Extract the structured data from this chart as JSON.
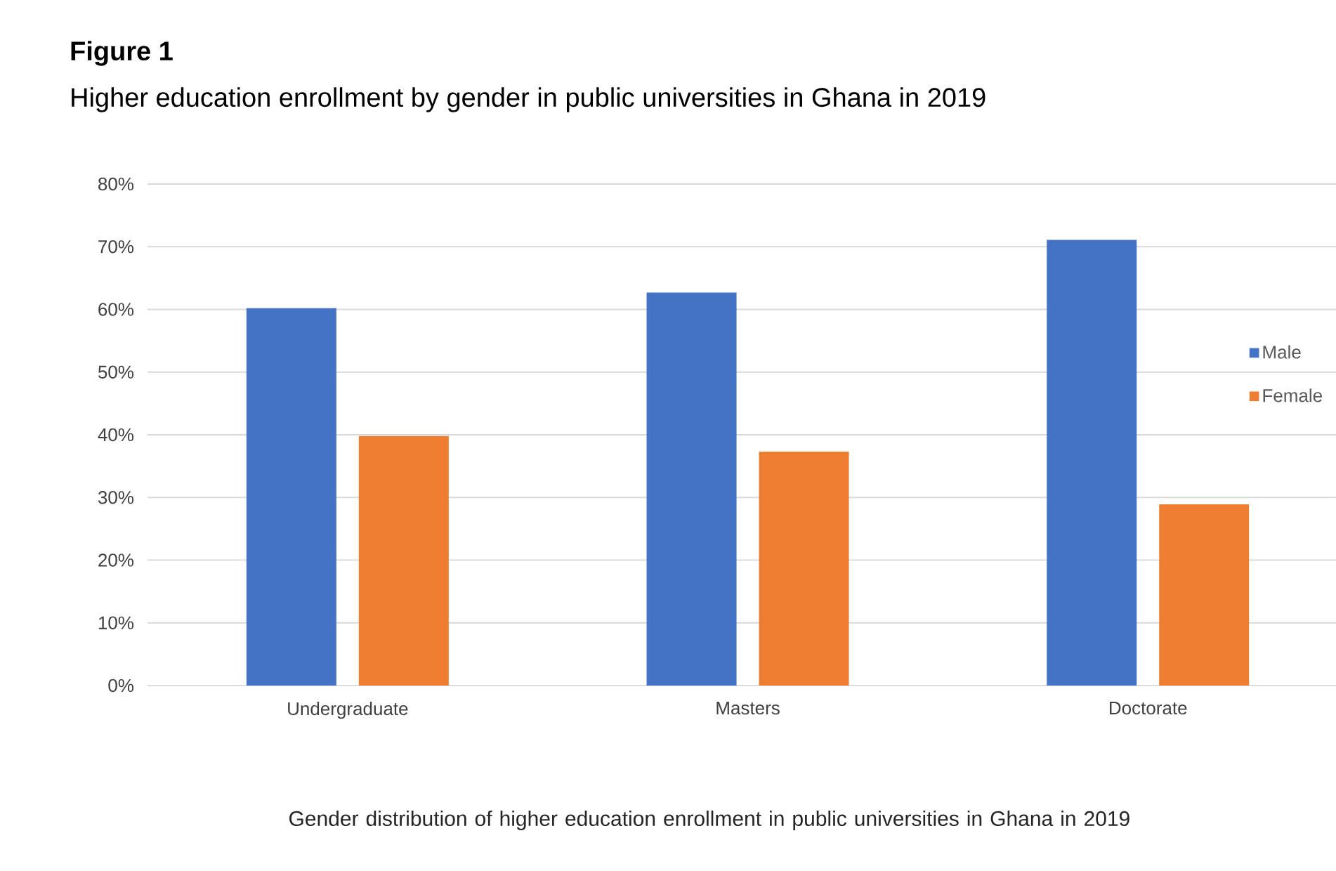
{
  "chart_data": {
    "type": "bar",
    "title": "**Figure 1**",
    "subtitle": "Higher education enrollment by gender in public universities in Ghana in 2019",
    "xlabel": "Gender distribution of higher education enrollment in public universities in Ghana in 2019",
    "categories": [
      "Undergraduate",
      "Masters",
      "Doctorate"
    ],
    "series": [
      {
        "name": "Male",
        "color": "#4472c4",
        "values": [
          60.2,
          62.7,
          71.1
        ]
      },
      {
        "name": "Female",
        "color": "#ed7d31",
        "values": [
          39.8,
          37.3,
          28.9
        ]
      }
    ],
    "ylim": [
      0,
      80
    ],
    "yticks": [
      {
        "value": 0,
        "label": "0%"
      },
      {
        "value": 10,
        "label": "10%"
      },
      {
        "value": 20,
        "label": "20%"
      },
      {
        "value": 30,
        "label": "30%"
      },
      {
        "value": 40,
        "label": "40%"
      },
      {
        "value": 50,
        "label": "50%"
      },
      {
        "value": 60,
        "label": "60%"
      },
      {
        "value": 70,
        "label": "70%"
      },
      {
        "value": 80,
        "label": "80%"
      }
    ],
    "grid": "y",
    "legend": "right"
  }
}
